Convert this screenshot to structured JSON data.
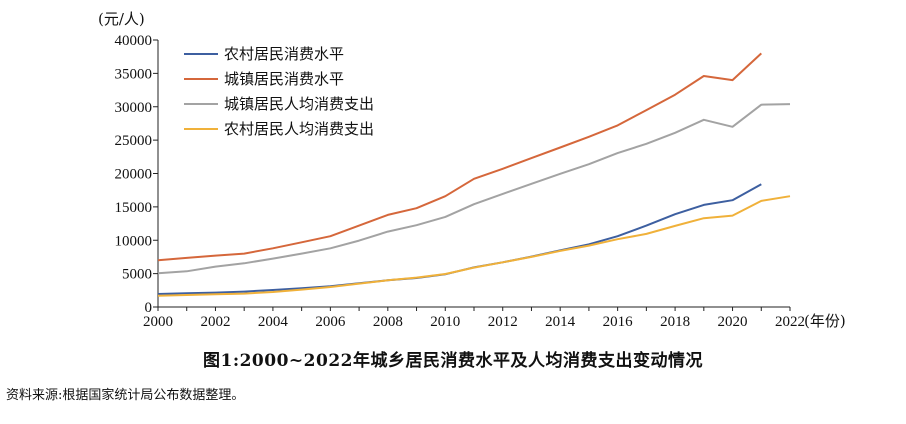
{
  "chart_data": {
    "type": "line",
    "x": [
      2000,
      2001,
      2002,
      2003,
      2004,
      2005,
      2006,
      2007,
      2008,
      2009,
      2010,
      2011,
      2012,
      2013,
      2014,
      2015,
      2016,
      2017,
      2018,
      2019,
      2020,
      2021,
      2022
    ],
    "x_ticks": [
      2000,
      2002,
      2004,
      2006,
      2008,
      2010,
      2012,
      2014,
      2016,
      2018,
      2020,
      2022
    ],
    "ylim": [
      0,
      40000
    ],
    "y_ticks": [
      0,
      5000,
      10000,
      15000,
      20000,
      25000,
      30000,
      35000,
      40000
    ],
    "ylabel": "(元/人)",
    "xlabel": "(年份)",
    "grid": false,
    "legend_position": "top-left",
    "series": [
      {
        "name": "农村居民消费水平",
        "color": "#3d5fa0",
        "values": [
          1950,
          2050,
          2150,
          2300,
          2550,
          2800,
          3100,
          3550,
          4000,
          4350,
          4900,
          5950,
          6700,
          7550,
          8500,
          9400,
          10600,
          12200,
          13900,
          15300,
          16000,
          18400,
          null
        ]
      },
      {
        "name": "城镇居民消费水平",
        "color": "#d5673b",
        "values": [
          7000,
          7350,
          7700,
          8000,
          8800,
          9700,
          10600,
          12200,
          13800,
          14800,
          16600,
          19200,
          20700,
          22300,
          23900,
          25500,
          27200,
          29500,
          31800,
          34600,
          34000,
          38000,
          null
        ]
      },
      {
        "name": "城镇居民人均消费支出",
        "color": "#a3a3a3",
        "values": [
          5050,
          5350,
          6050,
          6550,
          7250,
          8000,
          8800,
          9950,
          11300,
          12250,
          13500,
          15400,
          16950,
          18450,
          19950,
          21400,
          23050,
          24450,
          26100,
          28050,
          27000,
          30300,
          30400
        ]
      },
      {
        "name": "农村居民人均消费支出",
        "color": "#f0b13a",
        "values": [
          1700,
          1800,
          1900,
          2000,
          2250,
          2600,
          3000,
          3500,
          4000,
          4400,
          4950,
          5900,
          6700,
          7500,
          8400,
          9200,
          10150,
          10950,
          12150,
          13300,
          13700,
          15900,
          16600
        ]
      }
    ]
  },
  "caption": "图1:2000~2022年城乡居民消费水平及人均消费支出变动情况",
  "source_note": "资料来源:根据国家统计局公布数据整理。"
}
